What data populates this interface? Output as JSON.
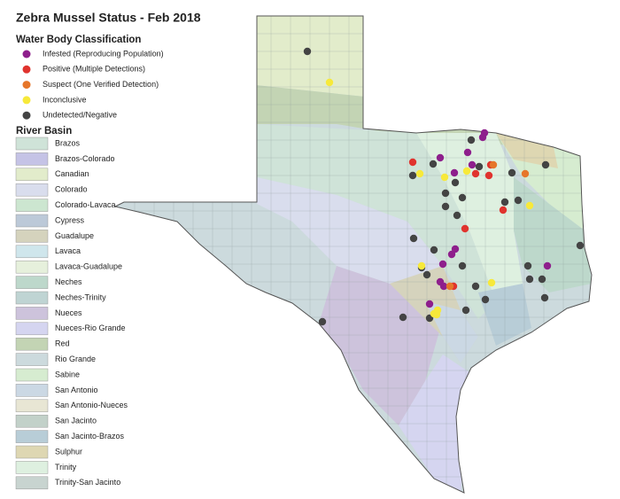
{
  "title": "Zebra Mussel Status - Feb 2018",
  "classification": {
    "title": "Water Body Classification",
    "items": [
      {
        "label": "Infested (Reproducing Population)",
        "color": "#8e1f8c"
      },
      {
        "label": "Positive (Multiple Detections)",
        "color": "#e0332e"
      },
      {
        "label": "Suspect (One Verified Detection)",
        "color": "#e6762a"
      },
      {
        "label": "Inconclusive",
        "color": "#f7e93a"
      },
      {
        "label": "Undetected/Negative",
        "color": "#444444"
      }
    ]
  },
  "basins": {
    "title": "River Basin",
    "items": [
      {
        "label": "Brazos",
        "color": "#cfe3d8"
      },
      {
        "label": "Brazos-Colorado",
        "color": "#c5c3e6"
      },
      {
        "label": "Canadian",
        "color": "#e2eccb"
      },
      {
        "label": "Colorado",
        "color": "#d9dded"
      },
      {
        "label": "Colorado-Lavaca",
        "color": "#cce6d0"
      },
      {
        "label": "Cypress",
        "color": "#bcc9d8"
      },
      {
        "label": "Guadalupe",
        "color": "#d5d3bd"
      },
      {
        "label": "Lavaca",
        "color": "#cfe6ec"
      },
      {
        "label": "Lavaca-Guadalupe",
        "color": "#e6f0dc"
      },
      {
        "label": "Neches",
        "color": "#bdd8cb"
      },
      {
        "label": "Neches-Trinity",
        "color": "#bfd4d3"
      },
      {
        "label": "Nueces",
        "color": "#cdc3dc"
      },
      {
        "label": "Nueces-Rio Grande",
        "color": "#d5d5f0"
      },
      {
        "label": "Red",
        "color": "#c3d4b4"
      },
      {
        "label": "Rio Grande",
        "color": "#ccdadd"
      },
      {
        "label": "Sabine",
        "color": "#d6ecd0"
      },
      {
        "label": "San Antonio",
        "color": "#cbd8e4"
      },
      {
        "label": "San Antonio-Nueces",
        "color": "#e8e6d4"
      },
      {
        "label": "San Jacinto",
        "color": "#c2d1c9"
      },
      {
        "label": "San Jacinto-Brazos",
        "color": "#b8cdd7"
      },
      {
        "label": "Sulphur",
        "color": "#ded7b2"
      },
      {
        "label": "Trinity",
        "color": "#def0e0"
      },
      {
        "label": "Trinity-San Jacinto",
        "color": "#c8d4d0"
      }
    ]
  }
}
